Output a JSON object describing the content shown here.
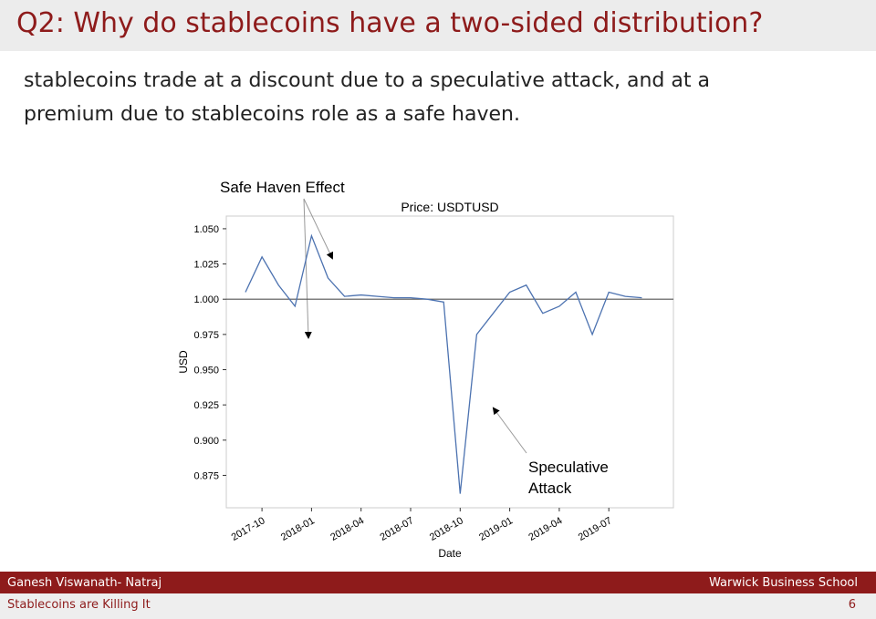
{
  "slide": {
    "title": "Q2: Why do stablecoins have a two-sided distribution?",
    "text_lines": [
      "stablecoins trade at a discount due to a speculative attack, and at a",
      "premium due to stablecoins role as a safe haven."
    ],
    "footer_left": "Ganesh Viswanath- Natraj",
    "footer_right": "Warwick Business School",
    "subfooter_left": "Stablecoins are Killing It",
    "page_number": "6"
  },
  "chart_data": {
    "type": "line",
    "title": "Price: USDTUSD",
    "x_label": "Date",
    "y_label": "USD",
    "x": [
      "2017-09",
      "2017-10",
      "2017-11",
      "2017-12",
      "2018-01",
      "2018-02",
      "2018-03",
      "2018-04",
      "2018-05",
      "2018-06",
      "2018-07",
      "2018-08",
      "2018-09",
      "2018-10",
      "2018-11",
      "2018-12",
      "2019-01",
      "2019-02",
      "2019-03",
      "2019-04",
      "2019-05",
      "2019-06",
      "2019-07",
      "2019-08",
      "2019-09"
    ],
    "series": [
      {
        "name": "USDTUSD",
        "color": "#4c72b0",
        "values": [
          1.005,
          1.03,
          1.01,
          0.995,
          1.045,
          1.015,
          1.002,
          1.003,
          1.002,
          1.001,
          1.001,
          1.0,
          0.998,
          0.862,
          0.975,
          0.99,
          1.005,
          1.01,
          0.99,
          0.995,
          1.005,
          0.975,
          1.005,
          1.002,
          1.001
        ]
      }
    ],
    "xticks": [
      "2017-10",
      "2018-01",
      "2018-04",
      "2018-07",
      "2018-10",
      "2019-01",
      "2019-04",
      "2019-07"
    ],
    "ylim": [
      0.852,
      1.059
    ],
    "yticks": [
      {
        "value": 0.875,
        "label": "0.875"
      },
      {
        "value": 0.9,
        "label": "0.900"
      },
      {
        "value": 0.925,
        "label": "0.925"
      },
      {
        "value": 0.95,
        "label": "0.950"
      },
      {
        "value": 0.975,
        "label": "0.975"
      },
      {
        "value": 1.0,
        "label": "1.000"
      },
      {
        "value": 1.025,
        "label": "1.025"
      },
      {
        "value": 1.05,
        "label": "1.050"
      }
    ],
    "reference_line": 1.0,
    "reference_color": "#555555",
    "annotations": {
      "safe_haven": "Safe Haven Effect",
      "speculative_attack": [
        "Speculative",
        "Attack"
      ]
    }
  }
}
